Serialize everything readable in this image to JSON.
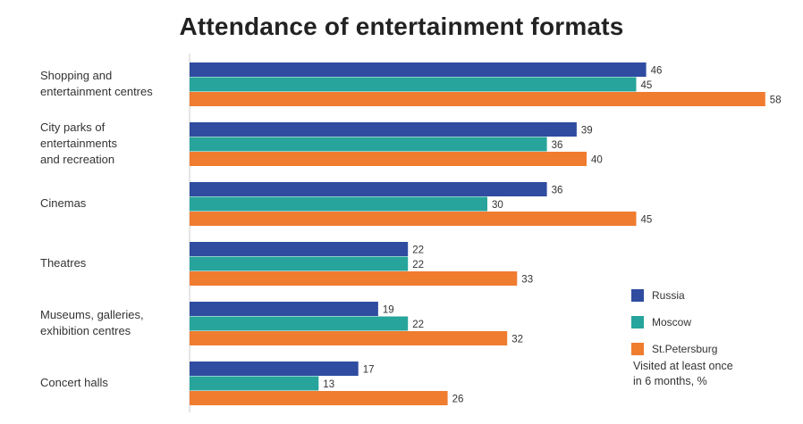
{
  "chart_data": {
    "type": "bar",
    "orientation": "horizontal",
    "title": "Attendance of entertainment formats",
    "categories": [
      "Shopping and\nentertainment centres",
      "City parks of\nentertainments\nand recreation",
      "Cinemas",
      "Theatres",
      "Museums, galleries,\nexhibition centres",
      "Concert halls"
    ],
    "series": [
      {
        "name": "Russia",
        "color": "#2f4ca0",
        "values": [
          46,
          39,
          36,
          22,
          19,
          17
        ]
      },
      {
        "name": "Moscow",
        "color": "#27a49b",
        "values": [
          45,
          36,
          30,
          22,
          22,
          13
        ]
      },
      {
        "name": "St.Petersburg",
        "color": "#f07c30",
        "values": [
          58,
          40,
          45,
          33,
          32,
          26
        ]
      }
    ],
    "xlim": [
      0,
      60
    ],
    "note": "Visited at least once\nin 6 months, %",
    "legend_position": "bottom-right",
    "grid": false
  }
}
